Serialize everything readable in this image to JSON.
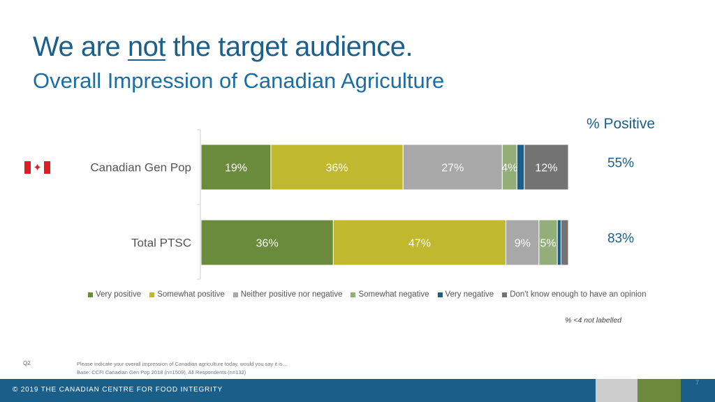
{
  "header": {
    "title_pre": "We are ",
    "title_emph": "not",
    "title_post": " the target audience.",
    "subtitle": "Overall Impression of Canadian Agriculture"
  },
  "positive_header": "% Positive",
  "flag_icon": "canada-flag-icon",
  "chart_data": {
    "type": "bar",
    "orientation": "horizontal",
    "stacked": true,
    "categories": [
      "Canadian Gen Pop",
      "Total PTSC"
    ],
    "series": [
      {
        "name": "Very positive",
        "color": "#6a8a3c",
        "values": [
          19,
          36
        ],
        "labels": [
          "19%",
          "36%"
        ]
      },
      {
        "name": "Somewhat positive",
        "color": "#c0b930",
        "values": [
          36,
          47
        ],
        "labels": [
          "36%",
          "47%"
        ]
      },
      {
        "name": "Neither positive nor negative",
        "color": "#a8a8a8",
        "values": [
          27,
          9
        ],
        "labels": [
          "27%",
          "9%"
        ]
      },
      {
        "name": "Somewhat negative",
        "color": "#94ae7a",
        "values": [
          4,
          5
        ],
        "labels": [
          "4%",
          "5%"
        ]
      },
      {
        "name": "Very negative",
        "color": "#1a5e8a",
        "values": [
          2,
          1
        ],
        "labels": [
          "",
          ""
        ]
      },
      {
        "name": "Don't know enough to have an opinion",
        "color": "#737373",
        "values": [
          12,
          2
        ],
        "labels": [
          "12%",
          ""
        ]
      }
    ],
    "percent_positive": [
      "55%",
      "83%"
    ],
    "xlim": [
      0,
      100
    ],
    "legend_position": "bottom",
    "grid": false
  },
  "note": "% <4 not labelled",
  "question": {
    "code": "Q2",
    "text": "Please indicate your overall impression of Canadian agriculture today, would you say it is…",
    "base": "Base: CCFI Canadian Gen Pop 2018 (n=1509), All Respondents (n=132)"
  },
  "footer": {
    "copyright": "© 2019 THE CANADIAN CENTRE FOR FOOD INTEGRITY",
    "page_number": "7"
  }
}
